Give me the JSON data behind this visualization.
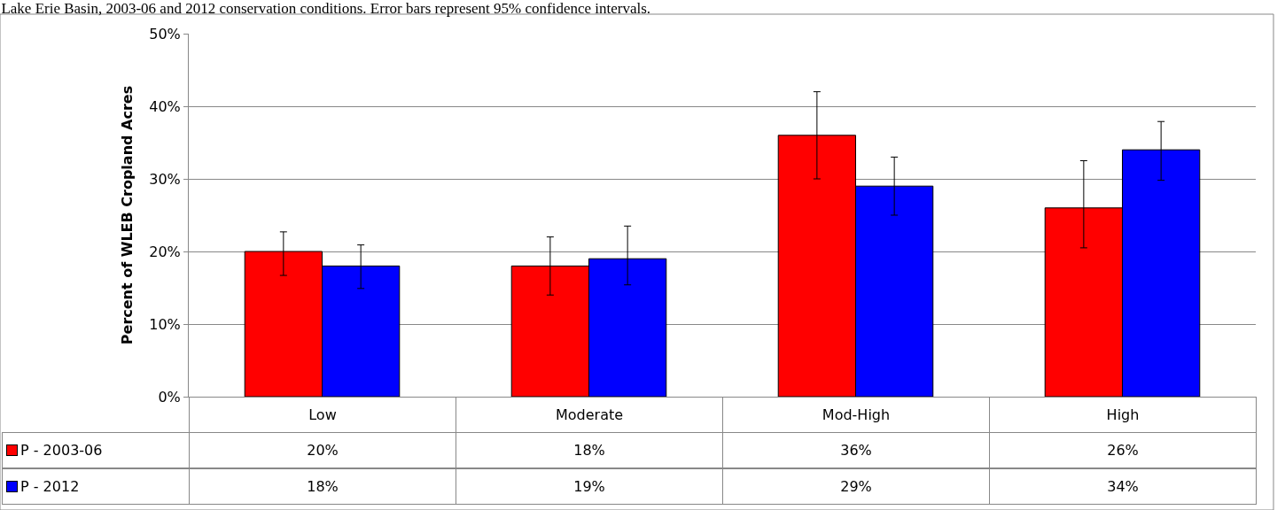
{
  "chart_data": {
    "type": "bar",
    "title": "Lake Erie Basin, 2003-06 and 2012 conservation conditions. Error bars represent 95% confidence intervals.",
    "ylabel": "Percent of WLEB Cropland Acres",
    "categories": [
      "Low",
      "Moderate",
      "Mod-High",
      "High"
    ],
    "series": [
      {
        "name": "P - 2003-06",
        "color": "#ff0000",
        "values": [
          20,
          18,
          36,
          26
        ],
        "value_labels": [
          "20%",
          "18%",
          "36%",
          "26%"
        ],
        "errors": [
          [
            16.7,
            22.7
          ],
          [
            14,
            22
          ],
          [
            30,
            42
          ],
          [
            20.5,
            32.5
          ]
        ]
      },
      {
        "name": "P - 2012",
        "color": "#0000ff",
        "values": [
          18,
          19,
          29,
          34
        ],
        "value_labels": [
          "18%",
          "19%",
          "29%",
          "34%"
        ],
        "errors": [
          [
            14.9,
            20.9
          ],
          [
            15.4,
            23.5
          ],
          [
            25,
            33
          ],
          [
            29.8,
            37.9
          ]
        ]
      }
    ],
    "ylim": [
      0,
      50
    ],
    "yticks": [
      {
        "value": 0,
        "label": "0%"
      },
      {
        "value": 10,
        "label": "10%"
      },
      {
        "value": 20,
        "label": "20%"
      },
      {
        "value": 30,
        "label": "30%"
      },
      {
        "value": 40,
        "label": "40%"
      },
      {
        "value": 50,
        "label": "50%"
      }
    ],
    "grid": "y",
    "legend": "bottom"
  }
}
